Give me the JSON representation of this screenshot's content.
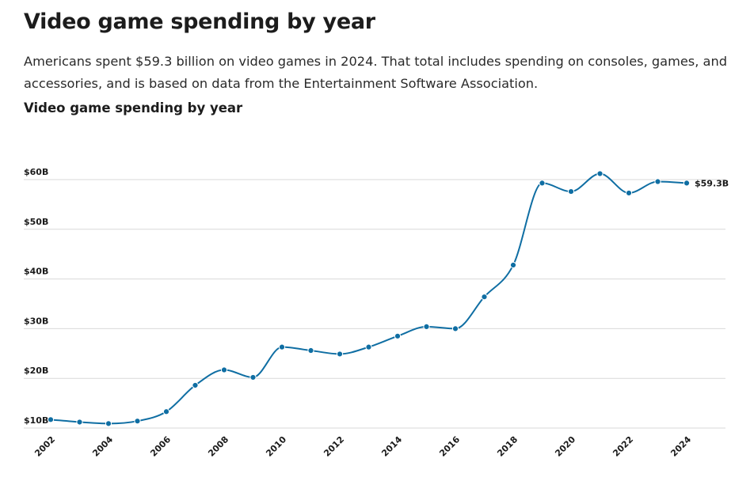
{
  "headline": "Video game spending by year",
  "description": "Americans spent $59.3 billion on video games in 2024. That total includes spending on consoles, games, and accessories, and is based on data from the Entertainment Software Association.",
  "chart_title": "Video game spending by year",
  "colors": {
    "line": "#0f6ea3",
    "grid": "#d9d9d9",
    "text": "#1a1a1a"
  },
  "chart_data": {
    "type": "line",
    "title": "Video game spending by year",
    "xlabel": "",
    "ylabel": "",
    "x": [
      2002,
      2003,
      2004,
      2005,
      2006,
      2007,
      2008,
      2009,
      2010,
      2011,
      2012,
      2013,
      2014,
      2015,
      2016,
      2017,
      2018,
      2019,
      2020,
      2021,
      2022,
      2023,
      2024
    ],
    "series": [
      {
        "values": [
          11.7,
          11.2,
          10.9,
          11.4,
          13.3,
          18.6,
          21.7,
          20.2,
          26.3,
          25.6,
          24.9,
          26.3,
          28.5,
          30.4,
          30.0,
          36.4,
          42.8,
          59.3,
          57.6,
          61.2,
          57.3,
          59.6,
          59.3
        ]
      }
    ],
    "xlim": [
      2002,
      2024
    ],
    "ylim": [
      10,
      60
    ],
    "yticks": [
      10,
      20,
      30,
      40,
      50,
      60
    ],
    "ytick_labels": [
      "$10B",
      "$20B",
      "$30B",
      "$40B",
      "$50B",
      "$60B"
    ],
    "xticks": [
      2002,
      2004,
      2006,
      2008,
      2010,
      2012,
      2014,
      2016,
      2018,
      2020,
      2022,
      2024
    ],
    "xtick_labels": [
      "2002",
      "2004",
      "2006",
      "2008",
      "2010",
      "2012",
      "2014",
      "2016",
      "2018",
      "2020",
      "2022",
      "2024"
    ],
    "end_label": "$59.3B",
    "grid": true
  }
}
